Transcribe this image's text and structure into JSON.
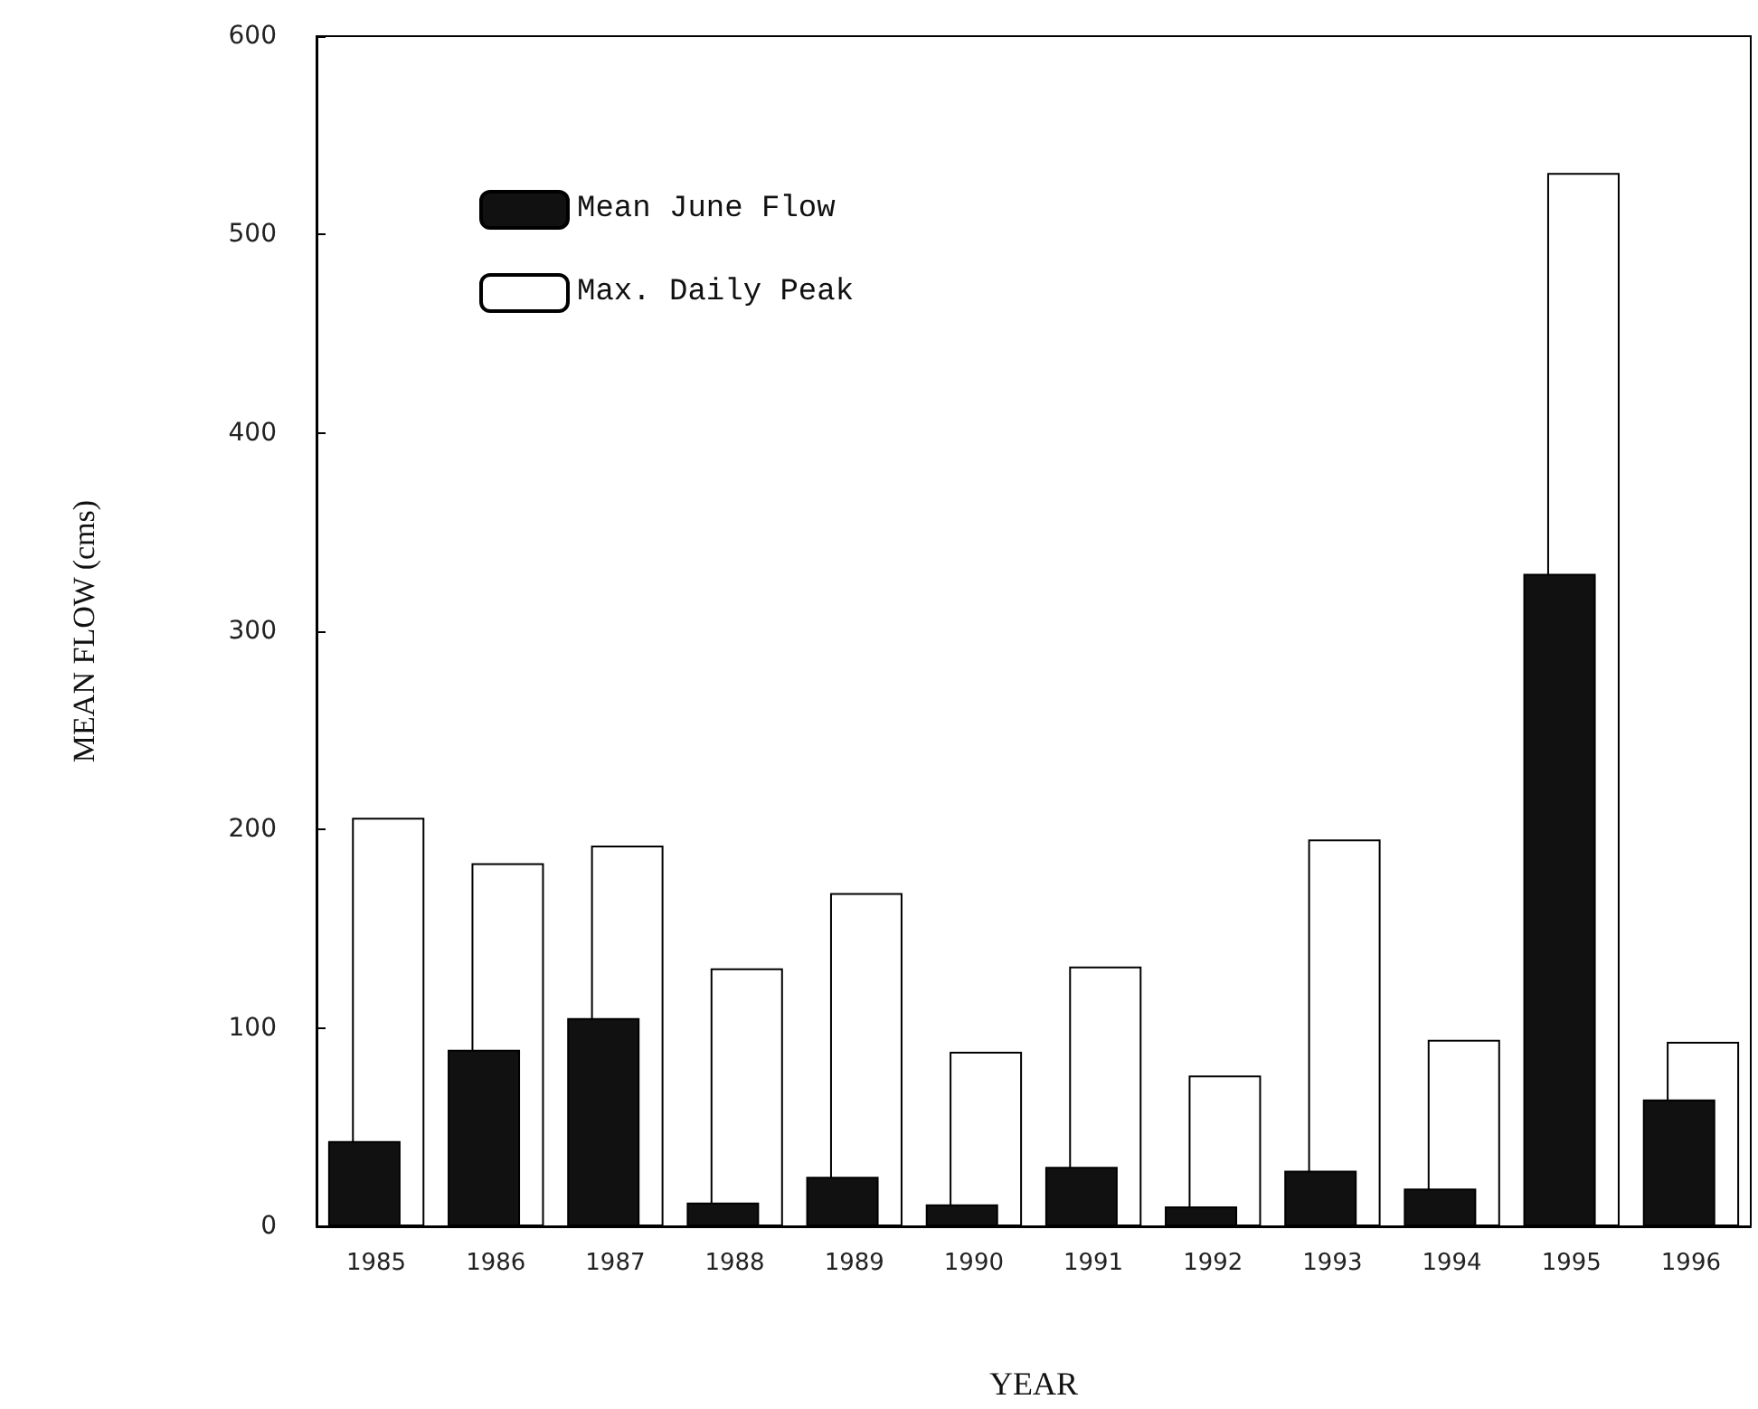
{
  "chart_data": {
    "type": "bar",
    "xlabel": "YEAR",
    "ylabel": "MEAN FLOW (cms)",
    "categories": [
      "1985",
      "1986",
      "1987",
      "1988",
      "1989",
      "1990",
      "1991",
      "1992",
      "1993",
      "1994",
      "1995",
      "1996"
    ],
    "series": [
      {
        "name": "Mean June Flow",
        "color": "#111111",
        "values": [
          43,
          89,
          105,
          12,
          25,
          11,
          30,
          10,
          28,
          19,
          329,
          64
        ]
      },
      {
        "name": "Max. Daily Peak",
        "color": "#ffffff",
        "values": [
          206,
          183,
          192,
          130,
          168,
          88,
          131,
          76,
          195,
          94,
          531,
          93
        ]
      }
    ],
    "ylim": [
      0,
      600
    ],
    "yticks": [
      0,
      100,
      200,
      300,
      400,
      500,
      600
    ],
    "grid": false,
    "legend": "top left"
  }
}
